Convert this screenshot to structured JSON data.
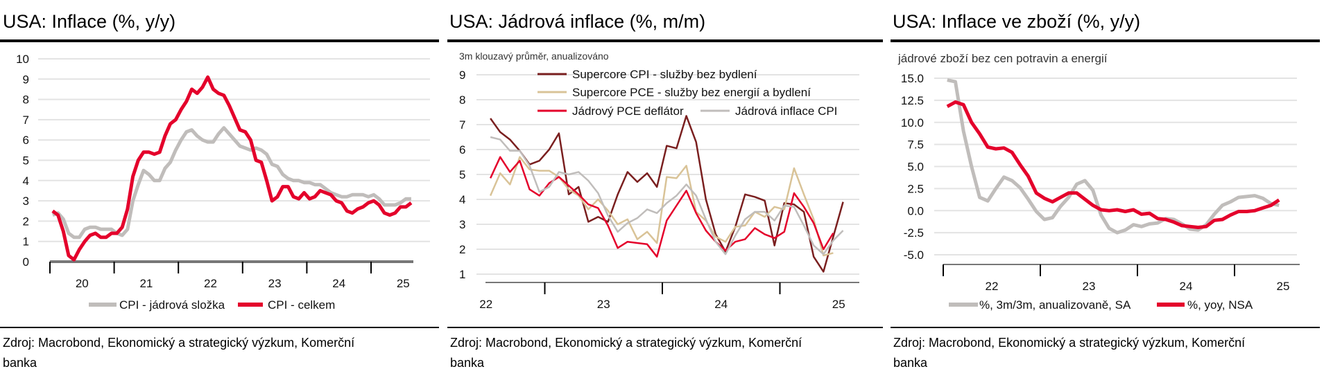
{
  "colors": {
    "red": "#e4002b",
    "grey": "#c0bdbb",
    "brown": "#7a1f1f",
    "tan": "#d9c397"
  },
  "source_line1": "Zdroj: Macrobond, Ekonomický a strategický výzkum, Komerční",
  "source_line2": "banka",
  "chart_data": [
    {
      "type": "line",
      "title": "USA: Inflace (%, y/y)",
      "subtitle": "",
      "start": "2020-01",
      "frequency": "monthly",
      "ylim": [
        0,
        10
      ],
      "yticks": [
        "0",
        "1",
        "2",
        "3",
        "4",
        "5",
        "6",
        "7",
        "8",
        "9",
        "10"
      ],
      "xtick_labels": [
        "20",
        "21",
        "22",
        "23",
        "24",
        "25"
      ],
      "legend_position": "bottom",
      "series": [
        {
          "name": "CPI - jádrová složka",
          "color": "#c0bdbb",
          "values": [
            2.3,
            2.4,
            2.1,
            1.4,
            1.2,
            1.2,
            1.6,
            1.7,
            1.7,
            1.6,
            1.6,
            1.6,
            1.4,
            1.3,
            1.6,
            3.0,
            3.8,
            4.5,
            4.3,
            4.0,
            4.0,
            4.6,
            4.9,
            5.5,
            6.0,
            6.4,
            6.5,
            6.2,
            6.0,
            5.9,
            5.9,
            6.3,
            6.6,
            6.3,
            6.0,
            5.7,
            5.6,
            5.5,
            5.6,
            5.5,
            5.3,
            4.8,
            4.7,
            4.3,
            4.1,
            4.0,
            4.0,
            3.9,
            3.9,
            3.8,
            3.8,
            3.6,
            3.4,
            3.3,
            3.2,
            3.2,
            3.3,
            3.3,
            3.3,
            3.2,
            3.3,
            3.1,
            2.8,
            2.8,
            2.8,
            2.9,
            3.1,
            3.1
          ]
        },
        {
          "name": "CPI - celkem",
          "color": "#e4002b",
          "values": [
            2.5,
            2.3,
            1.5,
            0.3,
            0.1,
            0.6,
            1.0,
            1.3,
            1.4,
            1.2,
            1.2,
            1.4,
            1.4,
            1.7,
            2.6,
            4.2,
            5.0,
            5.4,
            5.4,
            5.3,
            5.4,
            6.2,
            6.8,
            7.0,
            7.5,
            7.9,
            8.5,
            8.3,
            8.6,
            9.1,
            8.5,
            8.3,
            8.2,
            7.7,
            7.1,
            6.5,
            6.4,
            6.0,
            5.0,
            4.9,
            4.0,
            3.0,
            3.2,
            3.7,
            3.7,
            3.2,
            3.1,
            3.4,
            3.1,
            3.2,
            3.5,
            3.4,
            3.3,
            3.0,
            2.9,
            2.5,
            2.4,
            2.6,
            2.7,
            2.9,
            3.0,
            2.8,
            2.4,
            2.3,
            2.4,
            2.7,
            2.7,
            2.9
          ]
        }
      ]
    },
    {
      "type": "line",
      "title": "USA: Jádrová inflace (%, m/m)",
      "subtitle": "3m klouzavý průměr, anualizováno",
      "start": "2022-07",
      "frequency": "monthly",
      "ylim": [
        1,
        9
      ],
      "yticks": [
        "1",
        "2",
        "3",
        "4",
        "5",
        "6",
        "7",
        "8",
        "9"
      ],
      "xtick_labels": [
        "22",
        "23",
        "24",
        "25"
      ],
      "legend_position": "top",
      "series": [
        {
          "name": "Supercore CPI - služby bez bydlení",
          "color": "#7a1f1f",
          "values": [
            7.25,
            6.7,
            6.4,
            5.95,
            5.4,
            5.55,
            6.0,
            6.65,
            4.2,
            4.5,
            3.1,
            3.3,
            3.1,
            4.2,
            5.1,
            4.7,
            5.05,
            4.5,
            6.15,
            6.05,
            7.35,
            6.3,
            4.0,
            2.6,
            1.9,
            2.9,
            4.2,
            4.1,
            3.95,
            2.15,
            3.85,
            3.8,
            3.5,
            1.7,
            1.1,
            2.5,
            3.9
          ]
        },
        {
          "name": "Supercore PCE - služby bez energií a bydlení",
          "color": "#d9c397",
          "values": [
            4.15,
            5.05,
            4.6,
            5.7,
            5.2,
            5.15,
            5.15,
            4.9,
            4.4,
            4.15,
            3.6,
            4.0,
            3.55,
            3.0,
            3.2,
            2.4,
            2.7,
            2.25,
            4.9,
            4.85,
            5.35,
            3.5,
            3.15,
            2.5,
            2.3,
            2.9,
            2.95,
            3.5,
            3.3,
            3.7,
            3.6,
            5.25,
            4.2,
            3.2,
            1.75,
            1.85
          ]
        },
        {
          "name": "Jádrový PCE deflátor",
          "color": "#e4002b",
          "values": [
            4.85,
            5.7,
            5.1,
            5.55,
            4.4,
            4.15,
            4.65,
            4.9,
            4.55,
            4.2,
            3.8,
            3.65,
            2.95,
            2.05,
            2.3,
            2.25,
            2.2,
            1.7,
            3.15,
            3.75,
            4.35,
            3.45,
            2.75,
            2.3,
            1.95,
            2.3,
            2.4,
            2.85,
            2.6,
            2.45,
            2.7,
            4.25,
            3.7,
            3.05,
            2.0,
            2.65
          ]
        },
        {
          "name": "Jádrová inflace CPI",
          "color": "#c0bdbb",
          "values": [
            6.5,
            6.4,
            5.95,
            5.95,
            5.35,
            4.3,
            4.5,
            5.1,
            5.0,
            5.1,
            4.75,
            4.25,
            3.35,
            2.7,
            3.05,
            3.25,
            3.6,
            3.45,
            3.85,
            4.15,
            4.6,
            4.15,
            3.2,
            2.3,
            1.8,
            2.55,
            3.2,
            3.5,
            3.5,
            3.15,
            3.75,
            3.7,
            2.95,
            2.15,
            1.8,
            2.35,
            2.75
          ]
        }
      ]
    },
    {
      "type": "line",
      "title": "USA: Inflace ve zboží (%, y/y)",
      "subtitle": "jádrové zboží bez cen potravin a energií",
      "start": "2022-01",
      "frequency": "monthly",
      "ylim": [
        -5,
        15
      ],
      "yticks": [
        "-5.0",
        "-2.5",
        "0.0",
        "2.5",
        "5.0",
        "7.5",
        "10.0",
        "12.5",
        "15.0"
      ],
      "xtick_labels": [
        "22",
        "23",
        "24",
        "25"
      ],
      "legend_position": "bottom",
      "series": [
        {
          "name": "%, 3m/3m, anualizovaně, SA",
          "color": "#c0bdbb",
          "values": [
            14.8,
            14.6,
            9.0,
            5.0,
            1.5,
            1.1,
            2.5,
            3.8,
            3.4,
            2.6,
            1.3,
            -0.1,
            -1.0,
            -0.8,
            0.5,
            1.5,
            3.0,
            3.4,
            2.3,
            -0.5,
            -2.0,
            -2.5,
            -2.2,
            -1.6,
            -1.8,
            -1.5,
            -1.4,
            -0.9,
            -1.0,
            -1.5,
            -2.1,
            -2.2,
            -1.6,
            -0.4,
            0.6,
            1.0,
            1.5,
            1.6,
            1.7,
            1.4,
            0.8,
            0.6
          ]
        },
        {
          "name": "%, yoy, NSA",
          "color": "#e4002b",
          "values": [
            11.8,
            12.3,
            12.0,
            10.0,
            8.7,
            7.2,
            7.0,
            7.1,
            6.6,
            5.2,
            3.9,
            2.0,
            1.4,
            1.0,
            1.5,
            2.0,
            2.0,
            1.3,
            0.6,
            0.1,
            0.0,
            0.1,
            -0.1,
            0.1,
            -0.4,
            -0.3,
            -0.9,
            -1.0,
            -1.3,
            -1.7,
            -1.8,
            -1.9,
            -1.8,
            -1.1,
            -1.0,
            -0.5,
            -0.1,
            -0.1,
            0.0,
            0.3,
            0.6,
            1.2
          ]
        }
      ]
    }
  ]
}
